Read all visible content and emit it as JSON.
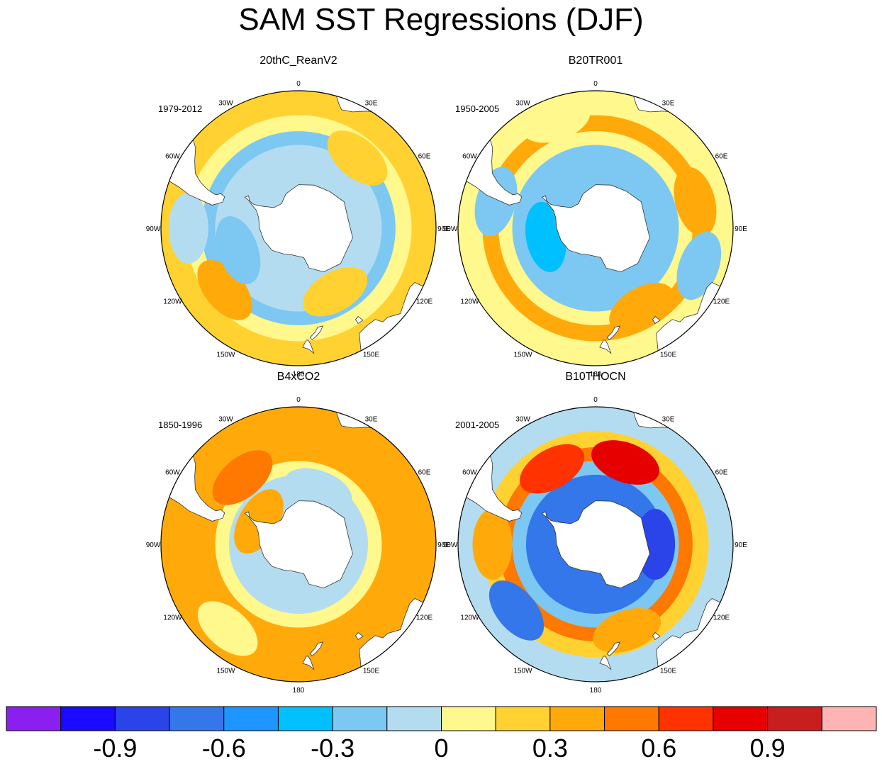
{
  "title": "SAM SST Regressions (DJF)",
  "chart_data": {
    "type": "heatmap",
    "projection": "south-polar-stereographic",
    "title": "SAM SST Regressions (DJF)",
    "longitude_labels": [
      "0",
      "30E",
      "60E",
      "90E",
      "120E",
      "150E",
      "180",
      "150W",
      "120W",
      "90W",
      "60W",
      "30W"
    ],
    "colorbar": {
      "levels": [
        -1.05,
        -0.9,
        -0.75,
        -0.6,
        -0.45,
        -0.3,
        -0.15,
        0,
        0.15,
        0.3,
        0.45,
        0.6,
        0.75,
        0.9,
        1.05
      ],
      "tick_labels": [
        "-0.9",
        "-0.6",
        "-0.3",
        "0",
        "0.3",
        "0.6",
        "0.9"
      ],
      "tick_values": [
        -0.9,
        -0.6,
        -0.3,
        0,
        0.3,
        0.6,
        0.9
      ],
      "colors": [
        "#8a1ff0",
        "#1a0aff",
        "#2a44ea",
        "#3477ea",
        "#1e96ff",
        "#00c0ff",
        "#7cc8f2",
        "#b4dcf0",
        "#fff88c",
        "#ffd232",
        "#ffaa0a",
        "#ff7800",
        "#ff3200",
        "#e60000",
        "#c81e1e",
        "#ffb4b4"
      ]
    },
    "panels": [
      {
        "name": "20thC_ReanV2",
        "period": "1979-2012",
        "rings": [
          {
            "lat": -40,
            "value": 0.15
          },
          {
            "lat": -45,
            "value": 0.05
          },
          {
            "lat": -52,
            "value": -0.2
          },
          {
            "lat": -58,
            "value": -0.05
          },
          {
            "lat": -64,
            "value": -0.1
          }
        ],
        "blobs": [
          {
            "lon": -130,
            "lat": -48,
            "value": 0.35
          },
          {
            "lon": -110,
            "lat": -62,
            "value": -0.25
          },
          {
            "lon": 40,
            "lat": -50,
            "value": 0.2
          },
          {
            "lon": -90,
            "lat": -42,
            "value": -0.15
          },
          {
            "lon": 150,
            "lat": -58,
            "value": 0.25
          }
        ]
      },
      {
        "name": "B20TR001",
        "period": "1950-2005",
        "rings": [
          {
            "lat": -40,
            "value": 0.1
          },
          {
            "lat": -45,
            "value": 0.3
          },
          {
            "lat": -52,
            "value": 0.1
          },
          {
            "lat": -58,
            "value": -0.2
          },
          {
            "lat": -64,
            "value": -0.3
          }
        ],
        "blobs": [
          {
            "lon": -100,
            "lat": -68,
            "value": -0.45
          },
          {
            "lon": -75,
            "lat": -45,
            "value": -0.3
          },
          {
            "lon": 150,
            "lat": -50,
            "value": 0.35
          },
          {
            "lon": 75,
            "lat": -45,
            "value": 0.3
          },
          {
            "lon": -20,
            "lat": -40,
            "value": 0.05
          },
          {
            "lon": 110,
            "lat": -42,
            "value": -0.2
          }
        ]
      },
      {
        "name": "B4xCO2",
        "period": "1850-1996",
        "rings": [
          {
            "lat": -40,
            "value": 0.3
          },
          {
            "lat": -45,
            "value": 0.35
          },
          {
            "lat": -52,
            "value": 0.3
          },
          {
            "lat": -58,
            "value": 0.1
          },
          {
            "lat": -64,
            "value": -0.05
          }
        ],
        "blobs": [
          {
            "lon": -140,
            "lat": -42,
            "value": 0.1
          },
          {
            "lon": -40,
            "lat": -52,
            "value": 0.45
          },
          {
            "lon": -60,
            "lat": -70,
            "value": 0.3
          },
          {
            "lon": 20,
            "lat": -65,
            "value": -0.1
          }
        ]
      },
      {
        "name": "B10THOCN",
        "period": "2001-2005",
        "rings": [
          {
            "lat": -40,
            "value": -0.1
          },
          {
            "lat": -45,
            "value": 0.2
          },
          {
            "lat": -52,
            "value": 0.5
          },
          {
            "lat": -58,
            "value": -0.3
          },
          {
            "lat": -64,
            "value": -0.7
          }
        ],
        "blobs": [
          {
            "lon": 20,
            "lat": -52,
            "value": 0.8
          },
          {
            "lon": -30,
            "lat": -52,
            "value": 0.7
          },
          {
            "lon": -130,
            "lat": -45,
            "value": -0.7
          },
          {
            "lon": 90,
            "lat": -64,
            "value": -0.85
          },
          {
            "lon": -90,
            "lat": -45,
            "value": 0.4
          },
          {
            "lon": 160,
            "lat": -50,
            "value": 0.3
          }
        ]
      }
    ]
  }
}
